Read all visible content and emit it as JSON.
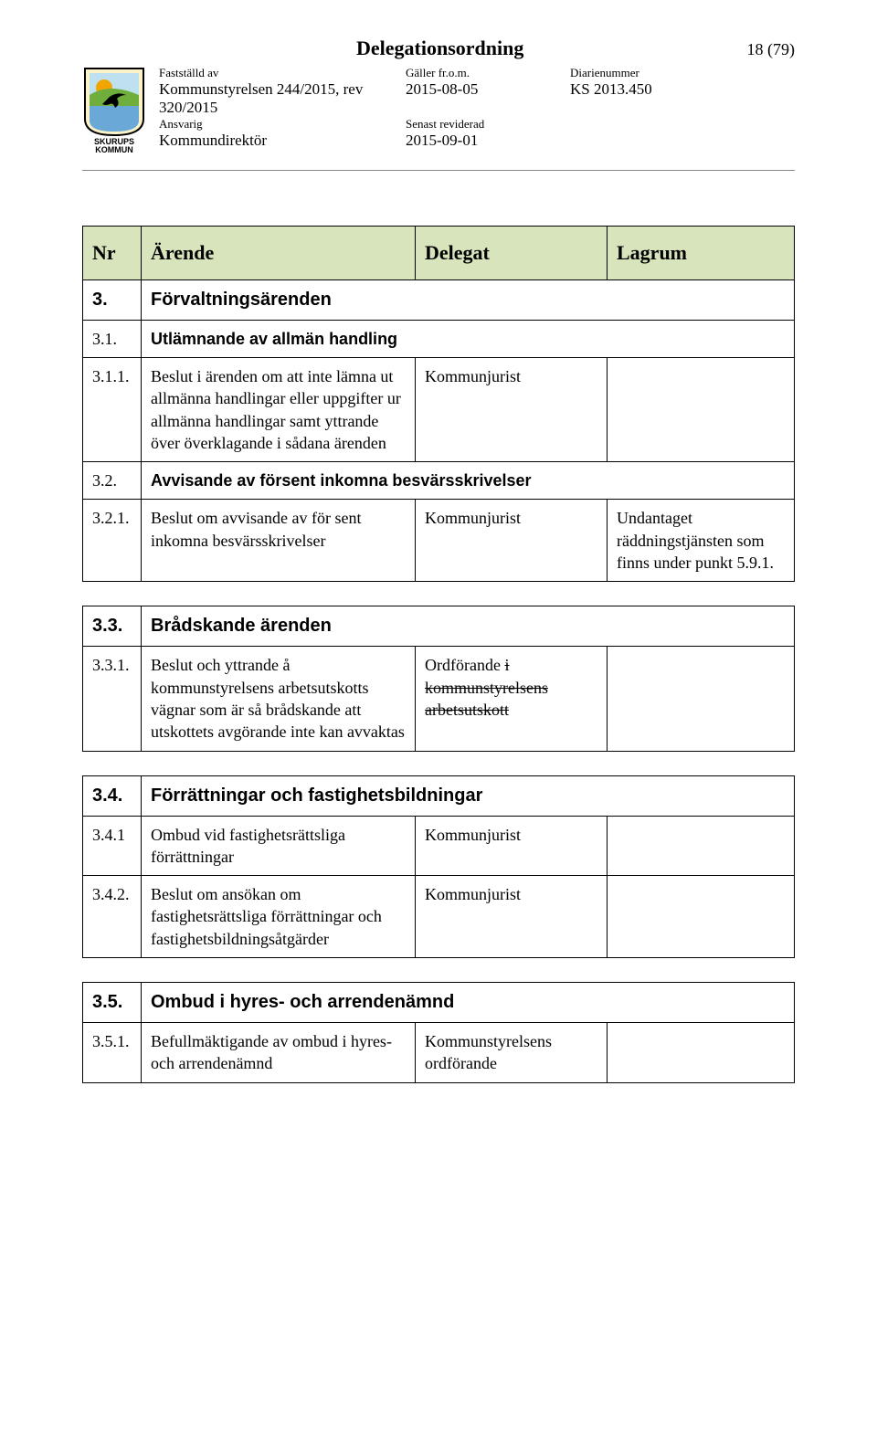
{
  "colors": {
    "header_bg": "#d7e4bc",
    "border": "#000000",
    "text": "#000000",
    "hr": "#888888"
  },
  "doc": {
    "title": "Delegationsordning",
    "page_indicator": "18 (79)"
  },
  "meta": {
    "col1_label1": "Fastställd av",
    "col1_val1a": "Kommunstyrelsen 244/2015, rev",
    "col1_val1b": "320/2015",
    "col1_label2": "Ansvarig",
    "col1_val2": "Kommundirektör",
    "col2_label1": "Gäller fr.o.m.",
    "col2_val1": "2015-08-05",
    "col2_label2": "Senast reviderad",
    "col2_val2": "2015-09-01",
    "col3_label1": "Diarienummer",
    "col3_val1": "KS 2013.450"
  },
  "logo": {
    "text_top": "SKURUPS",
    "text_bottom": "KOMMUN",
    "frame_fill": "#fbf3c7",
    "sun": "#f0a500",
    "hill": "#6fae3c",
    "water": "#6aa8d8",
    "bird": "#000000"
  },
  "table": {
    "head": {
      "c1": "Nr",
      "c2": "Ärende",
      "c3": "Delegat",
      "c4": "Lagrum"
    },
    "rows": [
      {
        "type": "section",
        "nr": "3.",
        "title": "Förvaltningsärenden"
      },
      {
        "type": "subsection",
        "nr": "3.1.",
        "title": "Utlämnande av allmän handling"
      },
      {
        "type": "item",
        "nr": "3.1.1.",
        "arende": "Beslut i ärenden om att inte lämna ut allmänna handlingar eller uppgifter ur allmänna handlingar samt yttrande över överklagande i sådana ärenden",
        "delegat": "Kommunjurist",
        "lagrum": ""
      },
      {
        "type": "subsection",
        "nr": "3.2.",
        "title": "Avvisande av försent inkomna besvärsskrivelser"
      },
      {
        "type": "item",
        "nr": "3.2.1.",
        "arende": "Beslut om avvisande av för sent inkomna besvärsskrivelser",
        "delegat": "Kommunjurist",
        "lagrum": "Undantaget räddningstjänsten som finns under punkt 5.9.1."
      },
      {
        "type": "gap"
      },
      {
        "type": "section",
        "nr": "3.3.",
        "title": "Brådskande ärenden"
      },
      {
        "type": "item",
        "nr": "3.3.1.",
        "arende": "Beslut och yttrande å kommunstyrelsens arbetsutskotts vägnar som är så brådskande att utskottets avgörande inte kan avvaktas",
        "delegat_html": "Ordförande <span class=\"strike\">i kommunstyrelsens arbetsutskott</span>",
        "lagrum": ""
      },
      {
        "type": "gap"
      },
      {
        "type": "section",
        "nr": "3.4.",
        "title": "Förrättningar och fastighetsbildningar"
      },
      {
        "type": "item",
        "nr": "3.4.1",
        "arende": "Ombud vid fastighetsrättsliga förrättningar",
        "delegat": "Kommunjurist",
        "lagrum": ""
      },
      {
        "type": "item",
        "nr": "3.4.2.",
        "arende": "Beslut om ansökan om fastighetsrättsliga förrättningar och fastighetsbildningsåtgärder",
        "delegat": "Kommunjurist",
        "lagrum": ""
      },
      {
        "type": "gap"
      },
      {
        "type": "section",
        "nr": "3.5.",
        "title": "Ombud i hyres- och arrendenämnd"
      },
      {
        "type": "item",
        "nr": "3.5.1.",
        "arende": "Befullmäktigande av ombud i hyres- och arrendenämnd",
        "delegat": "Kommunstyrelsens ordförande",
        "lagrum": ""
      }
    ]
  }
}
